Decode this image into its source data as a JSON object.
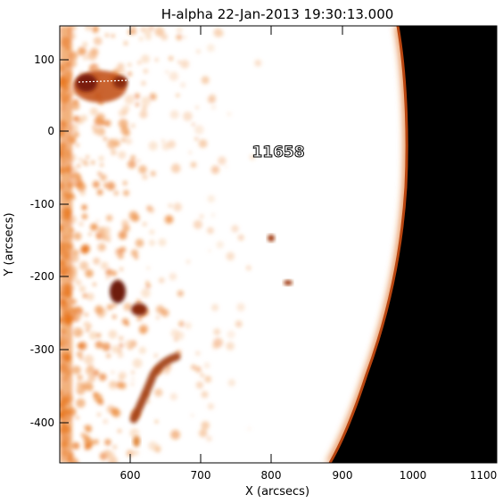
{
  "title": "H-alpha 22-Jan-2013 19:30:13.000",
  "xlabel": "X (arcsecs)",
  "ylabel": "Y (arcsecs)",
  "x_ticks": [
    "600",
    "700",
    "800",
    "900",
    "1000",
    "1100"
  ],
  "y_ticks": [
    "100",
    "0",
    "-100",
    "-200",
    "-300",
    "-400"
  ],
  "region_label": "11658",
  "colors": {
    "disk": "#ffffff",
    "space": "#000000",
    "plage": "#e8731a",
    "dark_feature": "#7a1f0a",
    "limb": "#c64a10"
  }
}
